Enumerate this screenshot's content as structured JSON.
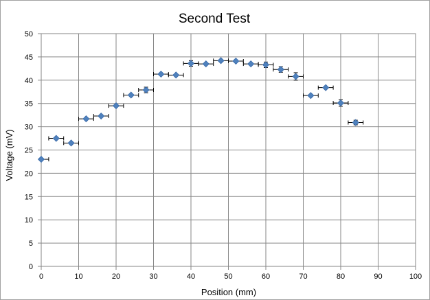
{
  "chart_data": {
    "type": "scatter",
    "title": "Second Test",
    "xlabel": "Position (mm)",
    "ylabel": "Voltage (mV)",
    "xlim": [
      0,
      100
    ],
    "ylim": [
      0,
      50
    ],
    "x_ticks": [
      0,
      10,
      20,
      30,
      40,
      50,
      60,
      70,
      80,
      90,
      100
    ],
    "y_ticks": [
      0,
      5,
      10,
      15,
      20,
      25,
      30,
      35,
      40,
      45,
      50
    ],
    "grid": true,
    "legend": "none",
    "marker": "diamond",
    "color": "#4f81bd",
    "x_error": 2,
    "series": [
      {
        "x": [
          0,
          4,
          8,
          12,
          16,
          20,
          24,
          28,
          32,
          36,
          40,
          44,
          48,
          52,
          56,
          60,
          64,
          68,
          72,
          76,
          80,
          84
        ],
        "y": [
          23.0,
          27.5,
          26.5,
          31.7,
          32.3,
          34.5,
          36.8,
          37.9,
          41.3,
          41.1,
          43.6,
          43.5,
          44.2,
          44.1,
          43.5,
          43.3,
          42.3,
          40.8,
          36.7,
          38.4,
          35.1,
          30.9
        ],
        "y_error": [
          0,
          0,
          0,
          0,
          0,
          0,
          0,
          0.6,
          0,
          0,
          0.6,
          0,
          0,
          0,
          0,
          0.6,
          0.6,
          0.8,
          0,
          0,
          0.7,
          0.5
        ]
      }
    ]
  }
}
